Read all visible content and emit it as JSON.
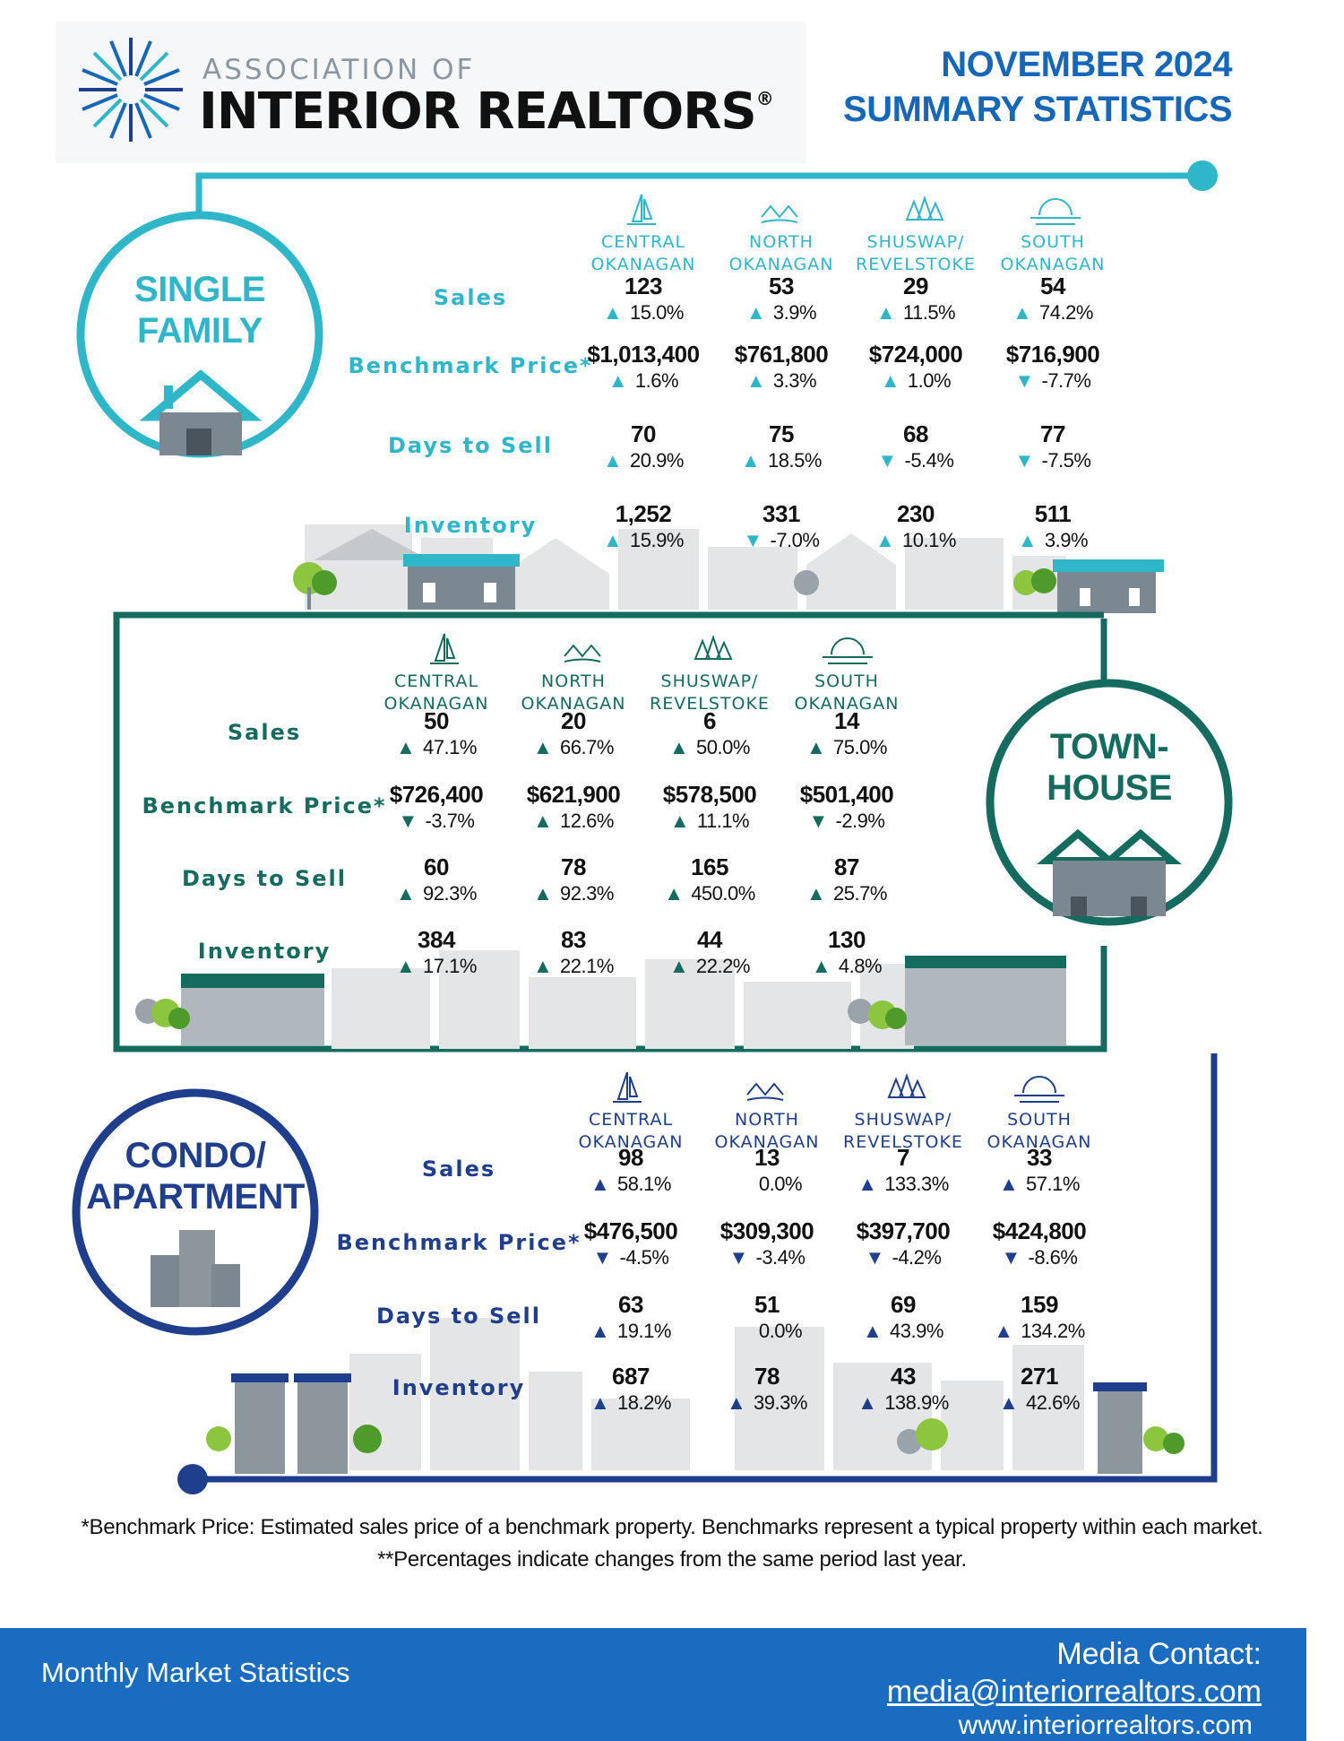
{
  "header": {
    "logo_small": "ASSOCIATION OF",
    "logo_big": "INTERIOR REALTORS",
    "logo_reg": "®",
    "title_line1": "NOVEMBER 2024",
    "title_line2": "SUMMARY STATISTICS"
  },
  "colors": {
    "single_family": "#2fb6c8",
    "townhouse": "#146b5e",
    "condo": "#1f3e8c",
    "blue": "#1667b8"
  },
  "row_labels": {
    "sales": "Sales",
    "benchmark": "Benchmark Price*",
    "days": "Days to Sell",
    "inventory": "Inventory"
  },
  "regions": [
    {
      "line1": "CENTRAL",
      "line2": "OKANAGAN",
      "icon": "sailboat-icon"
    },
    {
      "line1": "NORTH",
      "line2": "OKANAGAN",
      "icon": "mountains-icon"
    },
    {
      "line1": "SHUSWAP/",
      "line2": "REVELSTOKE",
      "icon": "trees-icon"
    },
    {
      "line1": "SOUTH",
      "line2": "OKANAGAN",
      "icon": "sunset-icon"
    }
  ],
  "single_family": {
    "title1": "SINGLE",
    "title2": "FAMILY",
    "sales": [
      {
        "v": "123",
        "p": "15.0%",
        "d": "up"
      },
      {
        "v": "53",
        "p": "3.9%",
        "d": "up"
      },
      {
        "v": "29",
        "p": "11.5%",
        "d": "up"
      },
      {
        "v": "54",
        "p": "74.2%",
        "d": "up"
      }
    ],
    "benchmark": [
      {
        "v": "$1,013,400",
        "p": "1.6%",
        "d": "up"
      },
      {
        "v": "$761,800",
        "p": "3.3%",
        "d": "up"
      },
      {
        "v": "$724,000",
        "p": "1.0%",
        "d": "up"
      },
      {
        "v": "$716,900",
        "p": "-7.7%",
        "d": "down"
      }
    ],
    "days": [
      {
        "v": "70",
        "p": "20.9%",
        "d": "up"
      },
      {
        "v": "75",
        "p": "18.5%",
        "d": "up"
      },
      {
        "v": "68",
        "p": "-5.4%",
        "d": "down"
      },
      {
        "v": "77",
        "p": "-7.5%",
        "d": "down"
      }
    ],
    "inventory": [
      {
        "v": "1,252",
        "p": "15.9%",
        "d": "up"
      },
      {
        "v": "331",
        "p": "-7.0%",
        "d": "down"
      },
      {
        "v": "230",
        "p": "10.1%",
        "d": "up"
      },
      {
        "v": "511",
        "p": "3.9%",
        "d": "up"
      }
    ]
  },
  "townhouse": {
    "title1": "TOWN-",
    "title2": "HOUSE",
    "sales": [
      {
        "v": "50",
        "p": "47.1%",
        "d": "up"
      },
      {
        "v": "20",
        "p": "66.7%",
        "d": "up"
      },
      {
        "v": "6",
        "p": "50.0%",
        "d": "up"
      },
      {
        "v": "14",
        "p": "75.0%",
        "d": "up"
      }
    ],
    "benchmark": [
      {
        "v": "$726,400",
        "p": "-3.7%",
        "d": "down"
      },
      {
        "v": "$621,900",
        "p": "12.6%",
        "d": "up"
      },
      {
        "v": "$578,500",
        "p": "11.1%",
        "d": "up"
      },
      {
        "v": "$501,400",
        "p": "-2.9%",
        "d": "down"
      }
    ],
    "days": [
      {
        "v": "60",
        "p": "92.3%",
        "d": "up"
      },
      {
        "v": "78",
        "p": "92.3%",
        "d": "up"
      },
      {
        "v": "165",
        "p": "450.0%",
        "d": "up"
      },
      {
        "v": "87",
        "p": "25.7%",
        "d": "up"
      }
    ],
    "inventory": [
      {
        "v": "384",
        "p": "17.1%",
        "d": "up"
      },
      {
        "v": "83",
        "p": "22.1%",
        "d": "up"
      },
      {
        "v": "44",
        "p": "22.2%",
        "d": "up"
      },
      {
        "v": "130",
        "p": "4.8%",
        "d": "up"
      }
    ]
  },
  "condo": {
    "title1": "CONDO/",
    "title2": "APARTMENT",
    "sales": [
      {
        "v": "98",
        "p": "58.1%",
        "d": "up"
      },
      {
        "v": "13",
        "p": "0.0%",
        "d": "none"
      },
      {
        "v": "7",
        "p": "133.3%",
        "d": "up"
      },
      {
        "v": "33",
        "p": "57.1%",
        "d": "up"
      }
    ],
    "benchmark": [
      {
        "v": "$476,500",
        "p": "-4.5%",
        "d": "down"
      },
      {
        "v": "$309,300",
        "p": "-3.4%",
        "d": "down"
      },
      {
        "v": "$397,700",
        "p": "-4.2%",
        "d": "down"
      },
      {
        "v": "$424,800",
        "p": "-8.6%",
        "d": "down"
      }
    ],
    "days": [
      {
        "v": "63",
        "p": "19.1%",
        "d": "up"
      },
      {
        "v": "51",
        "p": "0.0%",
        "d": "none"
      },
      {
        "v": "69",
        "p": "43.9%",
        "d": "up"
      },
      {
        "v": "159",
        "p": "134.2%",
        "d": "up"
      }
    ],
    "inventory": [
      {
        "v": "687",
        "p": "18.2%",
        "d": "up"
      },
      {
        "v": "78",
        "p": "39.3%",
        "d": "up"
      },
      {
        "v": "43",
        "p": "138.9%",
        "d": "up"
      },
      {
        "v": "271",
        "p": "42.6%",
        "d": "up"
      }
    ]
  },
  "footnotes": {
    "line1": "*Benchmark Price: Estimated sales price of a benchmark property. Benchmarks represent a typical property within each market.",
    "line2": "**Percentages indicate changes from the same period last year."
  },
  "footer": {
    "left": "Monthly Market Statistics",
    "media": "Media Contact:",
    "email": "media@interiorrealtors.com",
    "web": "www.interiorrealtors.com"
  }
}
